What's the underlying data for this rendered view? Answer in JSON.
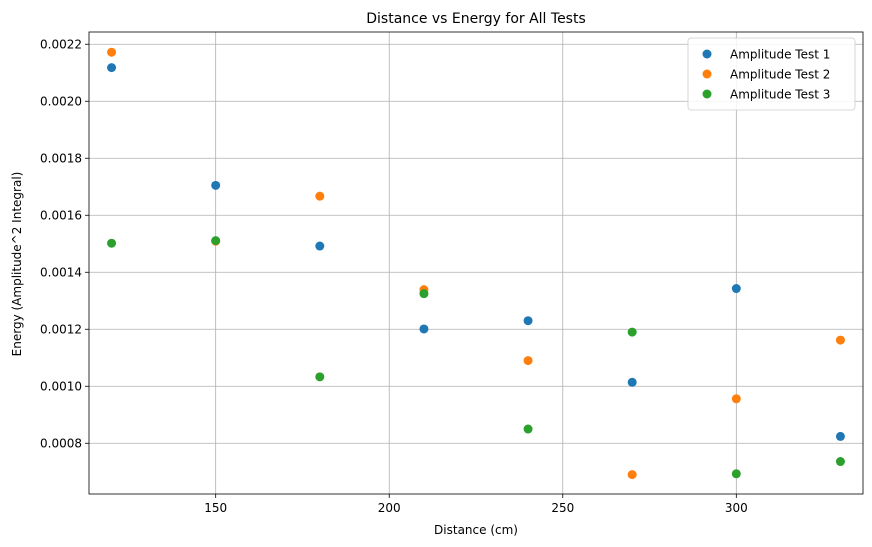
{
  "chart_data": {
    "type": "scatter",
    "title": "Distance vs Energy for All Tests",
    "xlabel": "Distance (cm)",
    "ylabel": "Energy (Amplitude^2 Integral)",
    "xlim": [
      113.5,
      336.5
    ],
    "ylim": [
      0.000622,
      0.002243
    ],
    "xticks": [
      150,
      200,
      250,
      300
    ],
    "xtick_labels": [
      "150",
      "200",
      "250",
      "300"
    ],
    "yticks": [
      0.0008,
      0.001,
      0.0012,
      0.0014,
      0.0016,
      0.0018,
      0.002,
      0.0022
    ],
    "ytick_labels": [
      "0.0008",
      "0.0010",
      "0.0012",
      "0.0014",
      "0.0016",
      "0.0018",
      "0.0020",
      "0.0022"
    ],
    "grid": true,
    "legend_position": "top-right",
    "x": [
      120,
      150,
      180,
      210,
      240,
      270,
      300,
      330
    ],
    "series": [
      {
        "name": "Amplitude Test 1",
        "color": "#1f77b4",
        "values": [
          0.002118,
          0.001705,
          0.001492,
          0.001201,
          0.00123,
          0.001014,
          0.001343,
          0.000824
        ]
      },
      {
        "name": "Amplitude Test 2",
        "color": "#ff7f0e",
        "values": [
          0.002172,
          0.001509,
          0.001667,
          0.001339,
          0.00109,
          0.00069,
          0.000956,
          0.001162
        ]
      },
      {
        "name": "Amplitude Test 3",
        "color": "#2ca02c",
        "values": [
          0.001502,
          0.001511,
          0.001033,
          0.001325,
          0.00085,
          0.00119,
          0.000693,
          0.000736
        ]
      }
    ]
  }
}
